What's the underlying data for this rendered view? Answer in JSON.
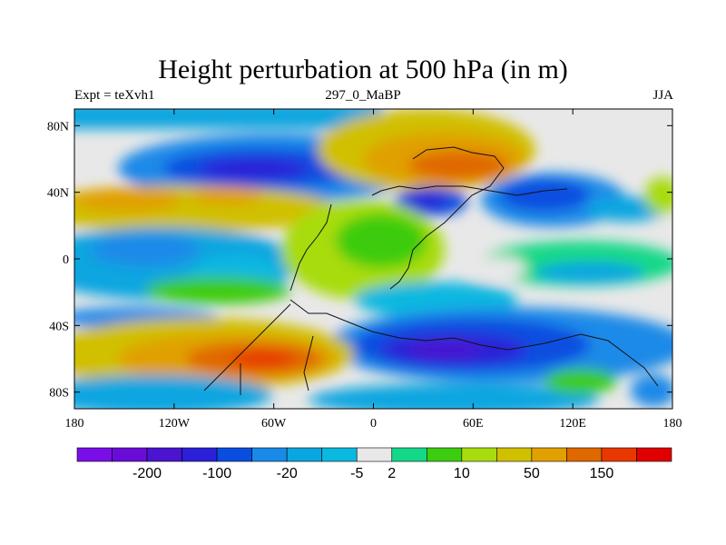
{
  "title": "Height perturbation at 500 hPa (in m)",
  "left_string": "Expt = teXvh1",
  "center_string": "297_0_MaBP",
  "right_string": "JJA",
  "map": {
    "lon_ticks": [
      {
        "value": -180,
        "label": "180"
      },
      {
        "value": -120,
        "label": "120W"
      },
      {
        "value": -60,
        "label": "60W"
      },
      {
        "value": 0,
        "label": "0"
      },
      {
        "value": 60,
        "label": "60E"
      },
      {
        "value": 120,
        "label": "120E"
      },
      {
        "value": 180,
        "label": "180"
      }
    ],
    "lat_ticks": [
      {
        "value": 80,
        "label": "80N"
      },
      {
        "value": 40,
        "label": "40N"
      },
      {
        "value": 0,
        "label": "0"
      },
      {
        "value": -40,
        "label": "40S"
      },
      {
        "value": -80,
        "label": "80S"
      }
    ]
  },
  "colorbar": {
    "colors": [
      "#7a0ee8",
      "#6a0cd8",
      "#4a14d0",
      "#2a20d8",
      "#0a4ee0",
      "#1a8ae8",
      "#0aa6e0",
      "#0ab8e0",
      "#e8e8e8",
      "#12d888",
      "#3ccc10",
      "#a8dc0e",
      "#d0c000",
      "#e0a000",
      "#e06800",
      "#e83800",
      "#e00000"
    ],
    "labels": [
      {
        "boundary": 2,
        "text": "-200"
      },
      {
        "boundary": 4,
        "text": "-100"
      },
      {
        "boundary": 6,
        "text": "-20"
      },
      {
        "boundary": 8,
        "text": "-5"
      },
      {
        "boundary": 9,
        "text": "2"
      },
      {
        "boundary": 11,
        "text": "10"
      },
      {
        "boundary": 13,
        "text": "50"
      },
      {
        "boundary": 15,
        "text": "150"
      }
    ]
  }
}
